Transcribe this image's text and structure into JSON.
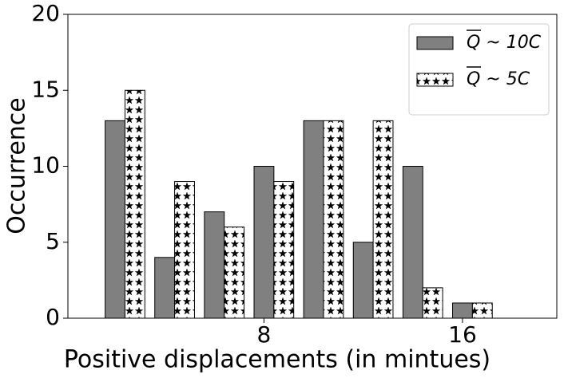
{
  "chart_data": {
    "type": "bar",
    "xlabel": "Positive displacements (in mintues)",
    "ylabel": "Occurrence",
    "x": [
      2,
      4,
      6,
      8,
      10,
      12,
      14,
      16
    ],
    "series": [
      {
        "name": "Q ~ 10C",
        "color": "#808080",
        "values": [
          13,
          4,
          7,
          10,
          13,
          5,
          10,
          1
        ]
      },
      {
        "name": "Q ~ 5C",
        "color": "#ffffff",
        "hatch": "*",
        "values": [
          15,
          9,
          6,
          9,
          13,
          13,
          2,
          1
        ]
      }
    ],
    "xlim": [
      0.1,
      19.8
    ],
    "xticks": [
      8,
      16
    ],
    "ylim": [
      0,
      20
    ],
    "yticks": [
      0,
      5,
      10,
      15,
      20
    ],
    "legend": "upper right"
  }
}
